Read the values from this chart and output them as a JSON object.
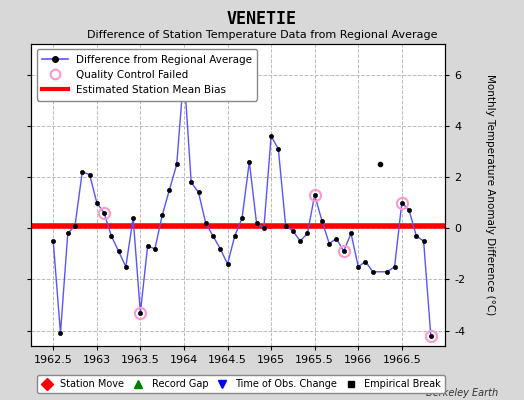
{
  "title": "VENETIE",
  "subtitle": "Difference of Station Temperature Data from Regional Average",
  "ylabel_right": "Monthly Temperature Anomaly Difference (°C)",
  "bias_value": 0.1,
  "xlim": [
    1962.25,
    1967.0
  ],
  "ylim": [
    -4.6,
    7.2
  ],
  "yticks": [
    -4,
    -2,
    0,
    2,
    4,
    6
  ],
  "xticks": [
    1962.5,
    1963.0,
    1963.5,
    1964.0,
    1964.5,
    1965.0,
    1965.5,
    1966.0,
    1966.5
  ],
  "xtick_labels": [
    "1962.5",
    "1963",
    "1963.5",
    "1964",
    "1964.5",
    "1965",
    "1965.5",
    "1966",
    "1966.5"
  ],
  "line_color": "#5555ff",
  "marker_color": "#000000",
  "bias_color": "#ff0000",
  "qc_fail_color": "#ff99cc",
  "background_color": "#d8d8d8",
  "plot_bg_color": "#ffffff",
  "grid_color": "#bbbbbb",
  "watermark": "Berkeley Earth",
  "segments": [
    {
      "x": [
        1962.5,
        1962.583,
        1962.667,
        1962.75,
        1962.833,
        1962.917,
        1963.0,
        1963.083,
        1963.167,
        1963.25,
        1963.333,
        1963.417,
        1963.5,
        1963.583,
        1963.667,
        1963.75,
        1963.833,
        1963.917,
        1964.0,
        1964.083,
        1964.167,
        1964.25,
        1964.333,
        1964.417,
        1964.5,
        1964.583,
        1964.667,
        1964.75,
        1964.833,
        1964.917,
        1965.0,
        1965.083,
        1965.167,
        1965.25,
        1965.333,
        1965.417,
        1965.5,
        1965.583,
        1965.667,
        1965.75,
        1965.833,
        1965.917,
        1966.0,
        1966.083,
        1966.167,
        1966.333,
        1966.417,
        1966.5,
        1966.583,
        1966.667,
        1966.75,
        1966.833
      ],
      "y": [
        -0.5,
        -4.1,
        -0.2,
        0.1,
        2.2,
        2.1,
        1.0,
        0.6,
        -0.3,
        -0.9,
        -1.5,
        0.4,
        -3.3,
        -0.7,
        -0.8,
        0.5,
        1.5,
        2.5,
        6.1,
        1.8,
        1.4,
        0.2,
        -0.3,
        -0.8,
        -1.4,
        -0.3,
        0.4,
        2.6,
        0.2,
        0.0,
        3.6,
        3.1,
        0.1,
        -0.1,
        -0.5,
        -0.2,
        1.3,
        0.3,
        -0.6,
        -0.4,
        -0.9,
        -0.2,
        -1.5,
        -1.3,
        -1.7,
        -1.7,
        -1.5,
        1.0,
        0.7,
        -0.3,
        -0.5,
        -4.2
      ]
    }
  ],
  "isolated_x": [
    1966.25
  ],
  "isolated_y": [
    2.5
  ],
  "qc_fail_x": [
    1963.083,
    1963.5,
    1965.5,
    1965.833,
    1966.5,
    1966.833
  ],
  "qc_fail_y": [
    0.6,
    -3.3,
    1.3,
    -0.9,
    1.0,
    -4.2
  ]
}
